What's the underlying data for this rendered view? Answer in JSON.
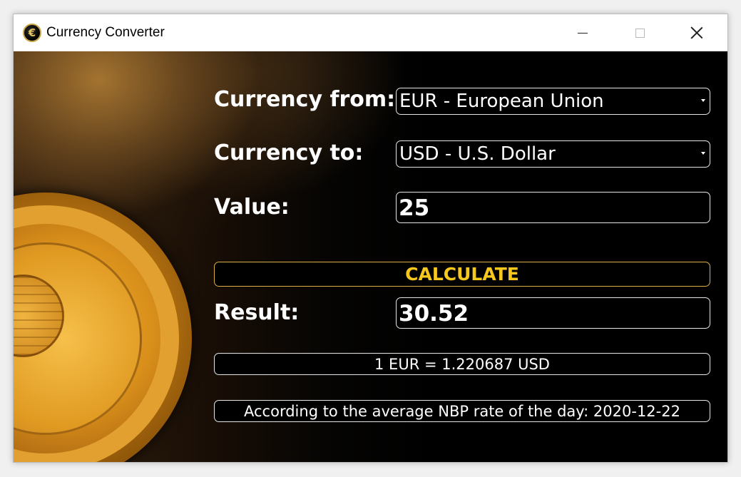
{
  "window": {
    "title": "Currency Converter",
    "icon": "euro-coin-icon"
  },
  "form": {
    "currency_from_label": "Currency from:",
    "currency_from_value": "EUR - European Union",
    "currency_to_label": "Currency to:",
    "currency_to_value": "USD - U.S. Dollar",
    "value_label": "Value:",
    "value": "25",
    "calculate_label": "CALCULATE",
    "result_label": "Result:",
    "result": "30.52",
    "rate_text": "1 EUR = 1.220687 USD",
    "source_text": "According to the average NBP rate of the day: 2020-12-22"
  },
  "colors": {
    "accent": "#f6c71c",
    "background": "#000000",
    "text": "#ffffff"
  }
}
